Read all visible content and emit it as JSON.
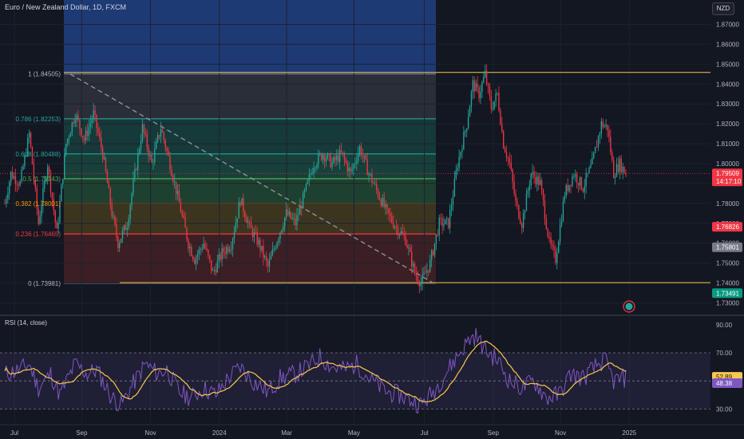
{
  "header": {
    "symbol_title": "Euro / New Zealand Dollar, 1D, FXCM",
    "currency": "NZD"
  },
  "fib": {
    "levels": [
      {
        "label": "1 (1.84505)",
        "price": 1.84505,
        "color": "#787b86"
      },
      {
        "label": "0.786 (1.82253)",
        "price": 1.82253,
        "color": "#26a69a"
      },
      {
        "label": "0.618 (1.80488)",
        "price": 1.80488,
        "color": "#26a69a"
      },
      {
        "label": "0.5 (1.79243)",
        "price": 1.79243,
        "color": "#4caf50"
      },
      {
        "label": "0.382 (1.78001)",
        "price": 1.78001,
        "color": "#ff9800"
      },
      {
        "label": "0.236 (1.76465)",
        "price": 1.76465,
        "color": "#f23645"
      },
      {
        "label": "0 (1.73981)",
        "price": 1.73981,
        "color": "#787b86"
      }
    ]
  },
  "price_axis": {
    "ticks": [
      "1.87000",
      "1.86000",
      "1.85000",
      "1.84000",
      "1.83000",
      "1.82000",
      "1.81000",
      "1.80000",
      "1.79000",
      "1.78000",
      "1.77000",
      "1.76000",
      "1.75000",
      "1.74000",
      "1.73000"
    ],
    "tick_values": [
      1.87,
      1.86,
      1.85,
      1.84,
      1.83,
      1.82,
      1.81,
      1.8,
      1.79,
      1.78,
      1.77,
      1.76,
      1.75,
      1.74,
      1.73
    ],
    "badges": [
      {
        "text": "1.79509",
        "sub": "14:17:10",
        "price": 1.79509,
        "color": "#f23645"
      },
      {
        "text": "1.76826",
        "price": 1.76826,
        "color": "#f23645"
      },
      {
        "text": "1.75801",
        "price": 1.75801,
        "color": "#787b86"
      },
      {
        "text": "1.73491",
        "price": 1.73491,
        "color": "#089981"
      }
    ]
  },
  "resistance_line": 1.8458,
  "support_line": 1.7402,
  "rsi": {
    "title": "RSI (14, close)",
    "ticks": [
      "90.00",
      "70.00",
      "30.00"
    ],
    "tick_values": [
      90,
      70,
      30
    ],
    "badges": [
      {
        "text": "52.89",
        "value": 52.89,
        "color": "#f9c74f"
      },
      {
        "text": "48.38",
        "value": 48.38,
        "color": "#7e57c2"
      }
    ]
  },
  "time_axis": {
    "labels": [
      "Jul",
      "Sep",
      "Nov",
      "2024",
      "Mar",
      "May",
      "Jul",
      "Sep",
      "Nov",
      "2025"
    ]
  },
  "colors": {
    "up": "#26a69a",
    "down": "#f23645",
    "rsi_line": "#7e57c2",
    "rsi_ma": "#f9c74f",
    "background": "#131722"
  },
  "chart_data": {
    "type": "candlestick",
    "title": "Euro / New Zealand Dollar, 1D, FXCM",
    "ylim": [
      1.725,
      1.875
    ],
    "anchors": [
      {
        "t": 0,
        "p": 1.78
      },
      {
        "t": 4,
        "p": 1.795
      },
      {
        "t": 10,
        "p": 1.79
      },
      {
        "t": 16,
        "p": 1.815
      },
      {
        "t": 22,
        "p": 1.77
      },
      {
        "t": 28,
        "p": 1.8
      },
      {
        "t": 34,
        "p": 1.765
      },
      {
        "t": 40,
        "p": 1.81
      },
      {
        "t": 46,
        "p": 1.825
      },
      {
        "t": 52,
        "p": 1.812
      },
      {
        "t": 58,
        "p": 1.825
      },
      {
        "t": 64,
        "p": 1.805
      },
      {
        "t": 70,
        "p": 1.775
      },
      {
        "t": 74,
        "p": 1.76
      },
      {
        "t": 80,
        "p": 1.77
      },
      {
        "t": 84,
        "p": 1.79
      },
      {
        "t": 90,
        "p": 1.818
      },
      {
        "t": 96,
        "p": 1.8
      },
      {
        "t": 102,
        "p": 1.818
      },
      {
        "t": 108,
        "p": 1.8
      },
      {
        "t": 114,
        "p": 1.78
      },
      {
        "t": 120,
        "p": 1.76
      },
      {
        "t": 124,
        "p": 1.752
      },
      {
        "t": 130,
        "p": 1.76
      },
      {
        "t": 136,
        "p": 1.745
      },
      {
        "t": 142,
        "p": 1.755
      },
      {
        "t": 148,
        "p": 1.76
      },
      {
        "t": 154,
        "p": 1.782
      },
      {
        "t": 160,
        "p": 1.768
      },
      {
        "t": 166,
        "p": 1.76
      },
      {
        "t": 172,
        "p": 1.748
      },
      {
        "t": 178,
        "p": 1.762
      },
      {
        "t": 184,
        "p": 1.775
      },
      {
        "t": 190,
        "p": 1.77
      },
      {
        "t": 196,
        "p": 1.785
      },
      {
        "t": 202,
        "p": 1.8
      },
      {
        "t": 208,
        "p": 1.805
      },
      {
        "t": 214,
        "p": 1.8
      },
      {
        "t": 220,
        "p": 1.805
      },
      {
        "t": 226,
        "p": 1.795
      },
      {
        "t": 232,
        "p": 1.808
      },
      {
        "t": 238,
        "p": 1.795
      },
      {
        "t": 244,
        "p": 1.785
      },
      {
        "t": 250,
        "p": 1.775
      },
      {
        "t": 256,
        "p": 1.768
      },
      {
        "t": 262,
        "p": 1.762
      },
      {
        "t": 268,
        "p": 1.745
      },
      {
        "t": 272,
        "p": 1.74
      },
      {
        "t": 278,
        "p": 1.75
      },
      {
        "t": 284,
        "p": 1.77
      },
      {
        "t": 290,
        "p": 1.77
      },
      {
        "t": 296,
        "p": 1.8
      },
      {
        "t": 302,
        "p": 1.82
      },
      {
        "t": 306,
        "p": 1.84
      },
      {
        "t": 310,
        "p": 1.835
      },
      {
        "t": 314,
        "p": 1.845
      },
      {
        "t": 318,
        "p": 1.828
      },
      {
        "t": 322,
        "p": 1.835
      },
      {
        "t": 326,
        "p": 1.81
      },
      {
        "t": 330,
        "p": 1.8
      },
      {
        "t": 334,
        "p": 1.78
      },
      {
        "t": 338,
        "p": 1.77
      },
      {
        "t": 344,
        "p": 1.795
      },
      {
        "t": 350,
        "p": 1.79
      },
      {
        "t": 356,
        "p": 1.76
      },
      {
        "t": 360,
        "p": 1.752
      },
      {
        "t": 366,
        "p": 1.785
      },
      {
        "t": 372,
        "p": 1.795
      },
      {
        "t": 378,
        "p": 1.788
      },
      {
        "t": 384,
        "p": 1.8
      },
      {
        "t": 390,
        "p": 1.82
      },
      {
        "t": 394,
        "p": 1.818
      },
      {
        "t": 398,
        "p": 1.795
      },
      {
        "t": 402,
        "p": 1.8
      },
      {
        "t": 406,
        "p": 1.795
      }
    ],
    "rsi_anchors": [
      {
        "t": 0,
        "v": 55
      },
      {
        "t": 10,
        "v": 58
      },
      {
        "t": 16,
        "v": 62
      },
      {
        "t": 22,
        "v": 45
      },
      {
        "t": 30,
        "v": 55
      },
      {
        "t": 36,
        "v": 40
      },
      {
        "t": 46,
        "v": 62
      },
      {
        "t": 54,
        "v": 55
      },
      {
        "t": 60,
        "v": 58
      },
      {
        "t": 70,
        "v": 38
      },
      {
        "t": 76,
        "v": 33
      },
      {
        "t": 84,
        "v": 48
      },
      {
        "t": 92,
        "v": 62
      },
      {
        "t": 100,
        "v": 55
      },
      {
        "t": 106,
        "v": 58
      },
      {
        "t": 114,
        "v": 42
      },
      {
        "t": 122,
        "v": 38
      },
      {
        "t": 130,
        "v": 45
      },
      {
        "t": 138,
        "v": 40
      },
      {
        "t": 146,
        "v": 52
      },
      {
        "t": 154,
        "v": 60
      },
      {
        "t": 162,
        "v": 50
      },
      {
        "t": 172,
        "v": 42
      },
      {
        "t": 180,
        "v": 52
      },
      {
        "t": 190,
        "v": 55
      },
      {
        "t": 198,
        "v": 60
      },
      {
        "t": 206,
        "v": 67
      },
      {
        "t": 214,
        "v": 60
      },
      {
        "t": 222,
        "v": 58
      },
      {
        "t": 230,
        "v": 62
      },
      {
        "t": 240,
        "v": 50
      },
      {
        "t": 250,
        "v": 42
      },
      {
        "t": 258,
        "v": 40
      },
      {
        "t": 266,
        "v": 36
      },
      {
        "t": 272,
        "v": 33
      },
      {
        "t": 280,
        "v": 42
      },
      {
        "t": 288,
        "v": 55
      },
      {
        "t": 296,
        "v": 68
      },
      {
        "t": 304,
        "v": 80
      },
      {
        "t": 308,
        "v": 82
      },
      {
        "t": 314,
        "v": 72
      },
      {
        "t": 322,
        "v": 65
      },
      {
        "t": 330,
        "v": 50
      },
      {
        "t": 338,
        "v": 45
      },
      {
        "t": 346,
        "v": 50
      },
      {
        "t": 354,
        "v": 38
      },
      {
        "t": 362,
        "v": 40
      },
      {
        "t": 370,
        "v": 55
      },
      {
        "t": 378,
        "v": 52
      },
      {
        "t": 386,
        "v": 60
      },
      {
        "t": 392,
        "v": 65
      },
      {
        "t": 398,
        "v": 50
      },
      {
        "t": 406,
        "v": 52
      }
    ]
  }
}
